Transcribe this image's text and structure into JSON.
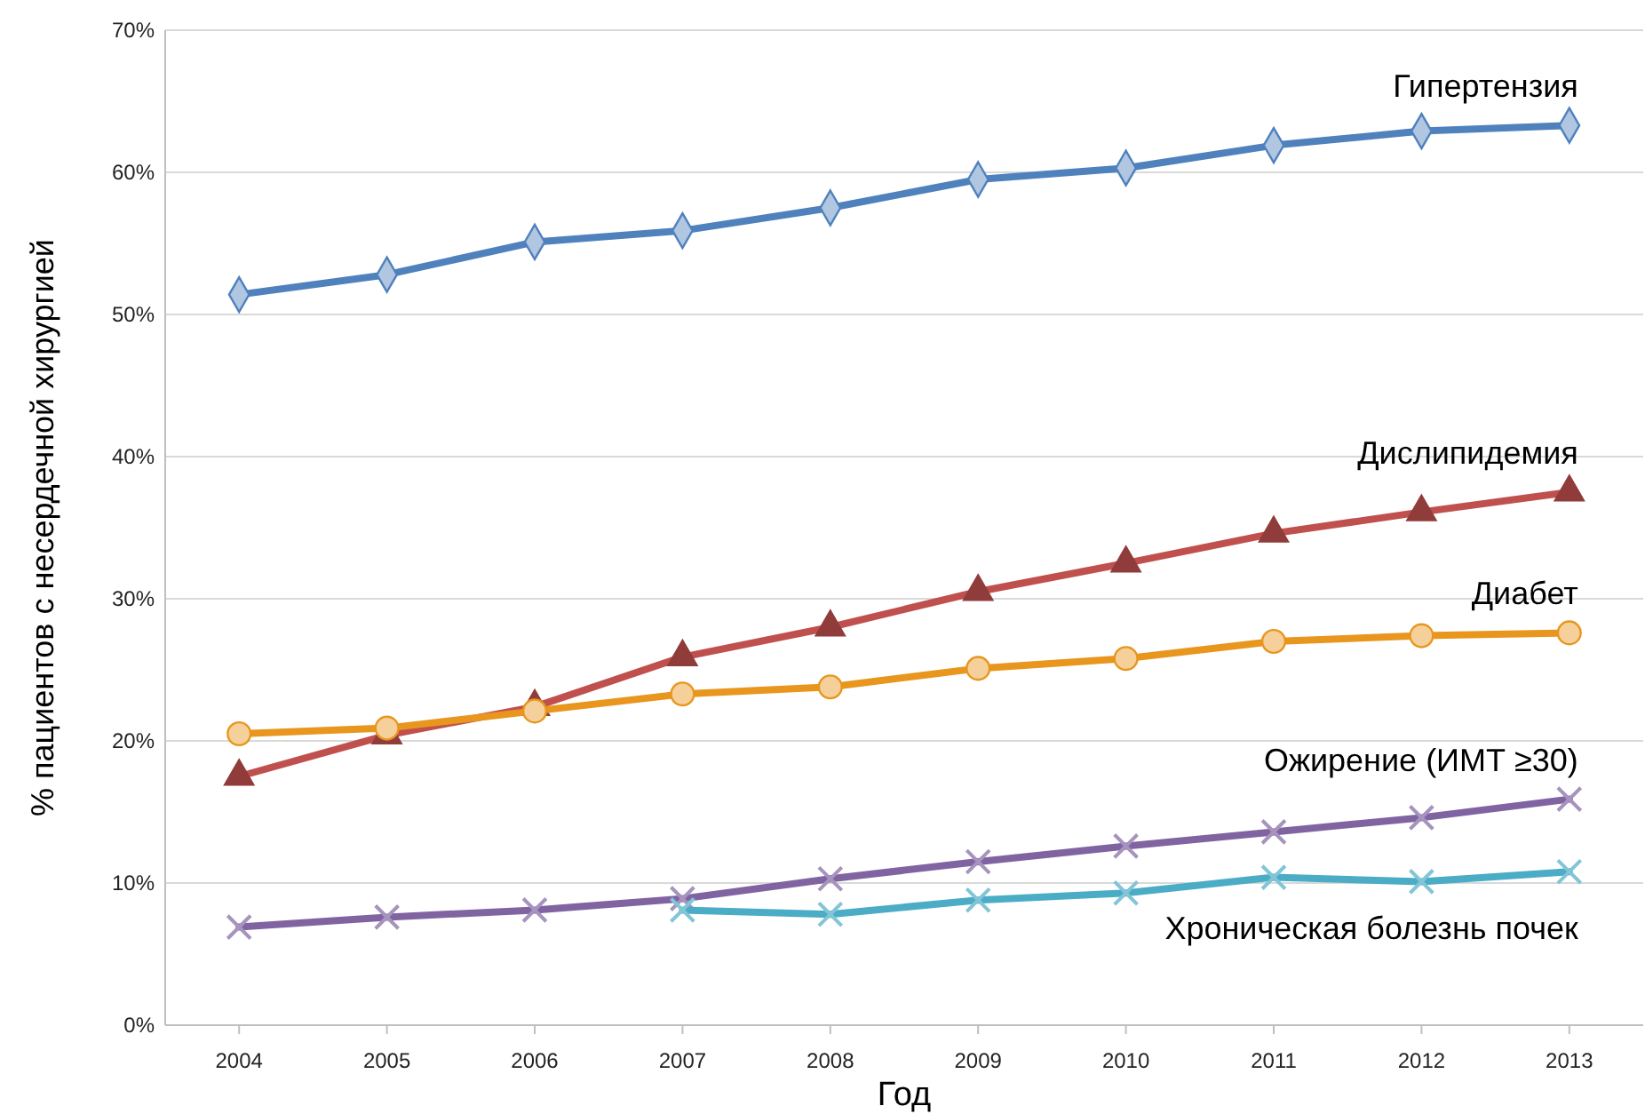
{
  "chart_data": {
    "type": "line",
    "xlabel": "Год",
    "ylabel": "% пациентов с несердечной хирургией",
    "categories": [
      "2004",
      "2005",
      "2006",
      "2007",
      "2008",
      "2009",
      "2010",
      "2011",
      "2012",
      "2013"
    ],
    "ylim": [
      0,
      70
    ],
    "yticks": [
      {
        "value": 0,
        "label": "0%"
      },
      {
        "value": 10,
        "label": "10%"
      },
      {
        "value": 20,
        "label": "20%"
      },
      {
        "value": 30,
        "label": "30%"
      },
      {
        "value": 40,
        "label": "40%"
      },
      {
        "value": 50,
        "label": "50%"
      },
      {
        "value": 60,
        "label": "60%"
      },
      {
        "value": 70,
        "label": "70%"
      }
    ],
    "grid": "y",
    "series": [
      {
        "name": "Гипертензия",
        "color": "#4f81bd",
        "marker": "diamond",
        "values": [
          51.4,
          52.8,
          55.1,
          55.9,
          57.5,
          59.5,
          60.3,
          61.9,
          62.9,
          63.3
        ]
      },
      {
        "name": "Дислипидемия",
        "color": "#c0504d",
        "marker": "triangle",
        "values": [
          17.5,
          20.4,
          22.4,
          25.9,
          28,
          30.5,
          32.5,
          34.6,
          36.1,
          37.5
        ]
      },
      {
        "name": "Диабет",
        "color": "#e8961e",
        "marker": "circle",
        "values": [
          20.5,
          20.9,
          22.1,
          23.3,
          23.8,
          25.1,
          25.8,
          27,
          27.4,
          27.6
        ]
      },
      {
        "name": "Ожирение (ИМТ ≥30)",
        "color": "#8064a2",
        "marker": "cross",
        "values": [
          6.9,
          7.6,
          8.1,
          8.9,
          10.3,
          11.5,
          12.6,
          13.6,
          14.6,
          15.9
        ]
      },
      {
        "name": "Хроническая болезнь почек",
        "color": "#4bacc6",
        "marker": "cross",
        "values": [
          null,
          null,
          null,
          8.1,
          7.8,
          8.8,
          9.3,
          10.4,
          10.1,
          10.8
        ]
      }
    ]
  }
}
